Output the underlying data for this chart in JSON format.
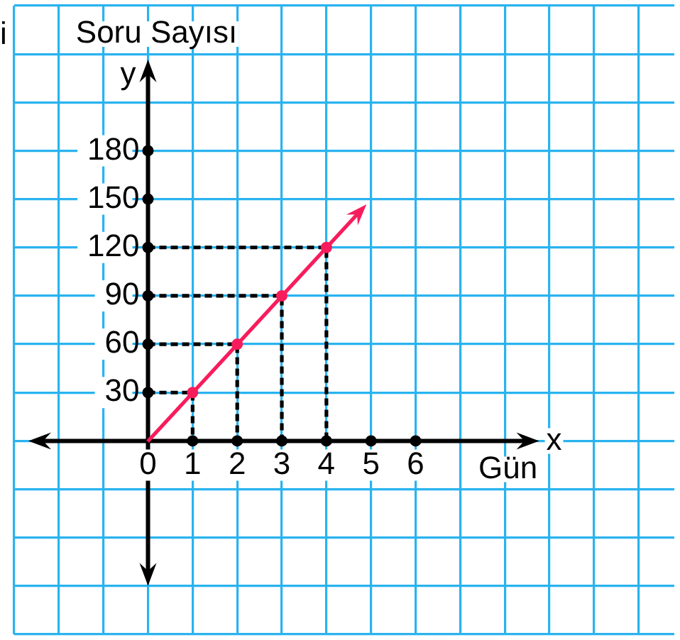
{
  "chart_data": {
    "type": "scatter",
    "xlabel": "Gün",
    "ylabel": "Soru Sayısı",
    "annotations": [
      "y",
      "x",
      "i"
    ],
    "series": [
      {
        "color": "#f81c5c",
        "marker": "circle",
        "x": [
          1,
          2,
          3,
          4
        ],
        "values": [
          30,
          60,
          90,
          120
        ]
      },
      {
        "type": "line",
        "color": "#000000",
        "line_style": "dashed",
        "x": [
          0,
          1,
          1
        ],
        "values": [
          30,
          30,
          0
        ]
      },
      {
        "type": "line",
        "color": "#000000",
        "line_style": "dashed",
        "x": [
          0,
          2,
          2
        ],
        "values": [
          60,
          60,
          0
        ]
      },
      {
        "type": "line",
        "color": "#000000",
        "line_style": "dashed",
        "x": [
          0,
          3,
          3
        ],
        "values": [
          90,
          90,
          0
        ]
      },
      {
        "type": "line",
        "color": "#000000",
        "line_style": "dashed",
        "x": [
          0,
          4,
          4
        ],
        "values": [
          120,
          120,
          0
        ]
      },
      {
        "color": "#000000",
        "marker": "circle",
        "x": [
          1,
          2,
          3,
          4,
          5,
          6
        ],
        "values": [
          0,
          0,
          0,
          0,
          0,
          0
        ]
      },
      {
        "color": "#000000",
        "marker": "circle",
        "x": [
          0,
          0,
          0,
          0,
          0,
          0
        ],
        "values": [
          30,
          60,
          90,
          120,
          150,
          180
        ]
      }
    ],
    "xlim": [
      -3,
      11.8
    ],
    "ylim": [
      -120,
      270
    ],
    "xticks": [
      {
        "value": -3,
        "label": null
      },
      {
        "value": -2,
        "label": null
      },
      {
        "value": -1,
        "label": null
      },
      0,
      1,
      2,
      3,
      4,
      5,
      6,
      {
        "value": 7,
        "label": null
      },
      {
        "value": 8,
        "label": null
      },
      {
        "value": 9,
        "label": null
      },
      {
        "value": 10,
        "label": null
      },
      {
        "value": 11,
        "label": null
      }
    ],
    "yticks": [
      {
        "value": -120,
        "label": null
      },
      {
        "value": -90,
        "label": null
      },
      {
        "value": -60,
        "label": null
      },
      {
        "value": -30,
        "label": null
      },
      {
        "value": 0,
        "label": null
      },
      30,
      60,
      90,
      120,
      150,
      180,
      {
        "value": 210,
        "label": null
      },
      {
        "value": 240,
        "label": null
      },
      {
        "value": 270,
        "label": null
      }
    ],
    "grid": true
  }
}
